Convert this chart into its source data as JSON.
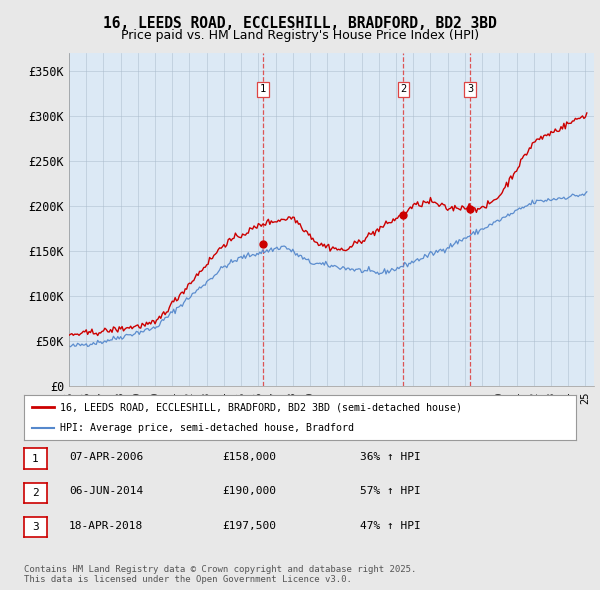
{
  "title": "16, LEEDS ROAD, ECCLESHILL, BRADFORD, BD2 3BD",
  "subtitle": "Price paid vs. HM Land Registry's House Price Index (HPI)",
  "ylabel_ticks": [
    "£0",
    "£50K",
    "£100K",
    "£150K",
    "£200K",
    "£250K",
    "£300K",
    "£350K"
  ],
  "ytick_values": [
    0,
    50000,
    100000,
    150000,
    200000,
    250000,
    300000,
    350000
  ],
  "ylim": [
    0,
    370000
  ],
  "x_start_year": 1995,
  "x_end_year": 2025,
  "red_color": "#cc0000",
  "blue_color": "#5588cc",
  "plot_bg_color": "#dce9f5",
  "background_color": "#e8e8e8",
  "vline_color": "#dd4444",
  "sale_dates": [
    2006.27,
    2014.43,
    2018.3
  ],
  "sale_labels": [
    "1",
    "2",
    "3"
  ],
  "sale_prices": [
    158000,
    190000,
    197500
  ],
  "legend_label_red": "16, LEEDS ROAD, ECCLESHILL, BRADFORD, BD2 3BD (semi-detached house)",
  "legend_label_blue": "HPI: Average price, semi-detached house, Bradford",
  "table_entries": [
    {
      "num": "1",
      "date": "07-APR-2006",
      "price": "£158,000",
      "change": "36% ↑ HPI"
    },
    {
      "num": "2",
      "date": "06-JUN-2014",
      "price": "£190,000",
      "change": "57% ↑ HPI"
    },
    {
      "num": "3",
      "date": "18-APR-2018",
      "price": "£197,500",
      "change": "47% ↑ HPI"
    }
  ],
  "footnote": "Contains HM Land Registry data © Crown copyright and database right 2025.\nThis data is licensed under the Open Government Licence v3.0."
}
